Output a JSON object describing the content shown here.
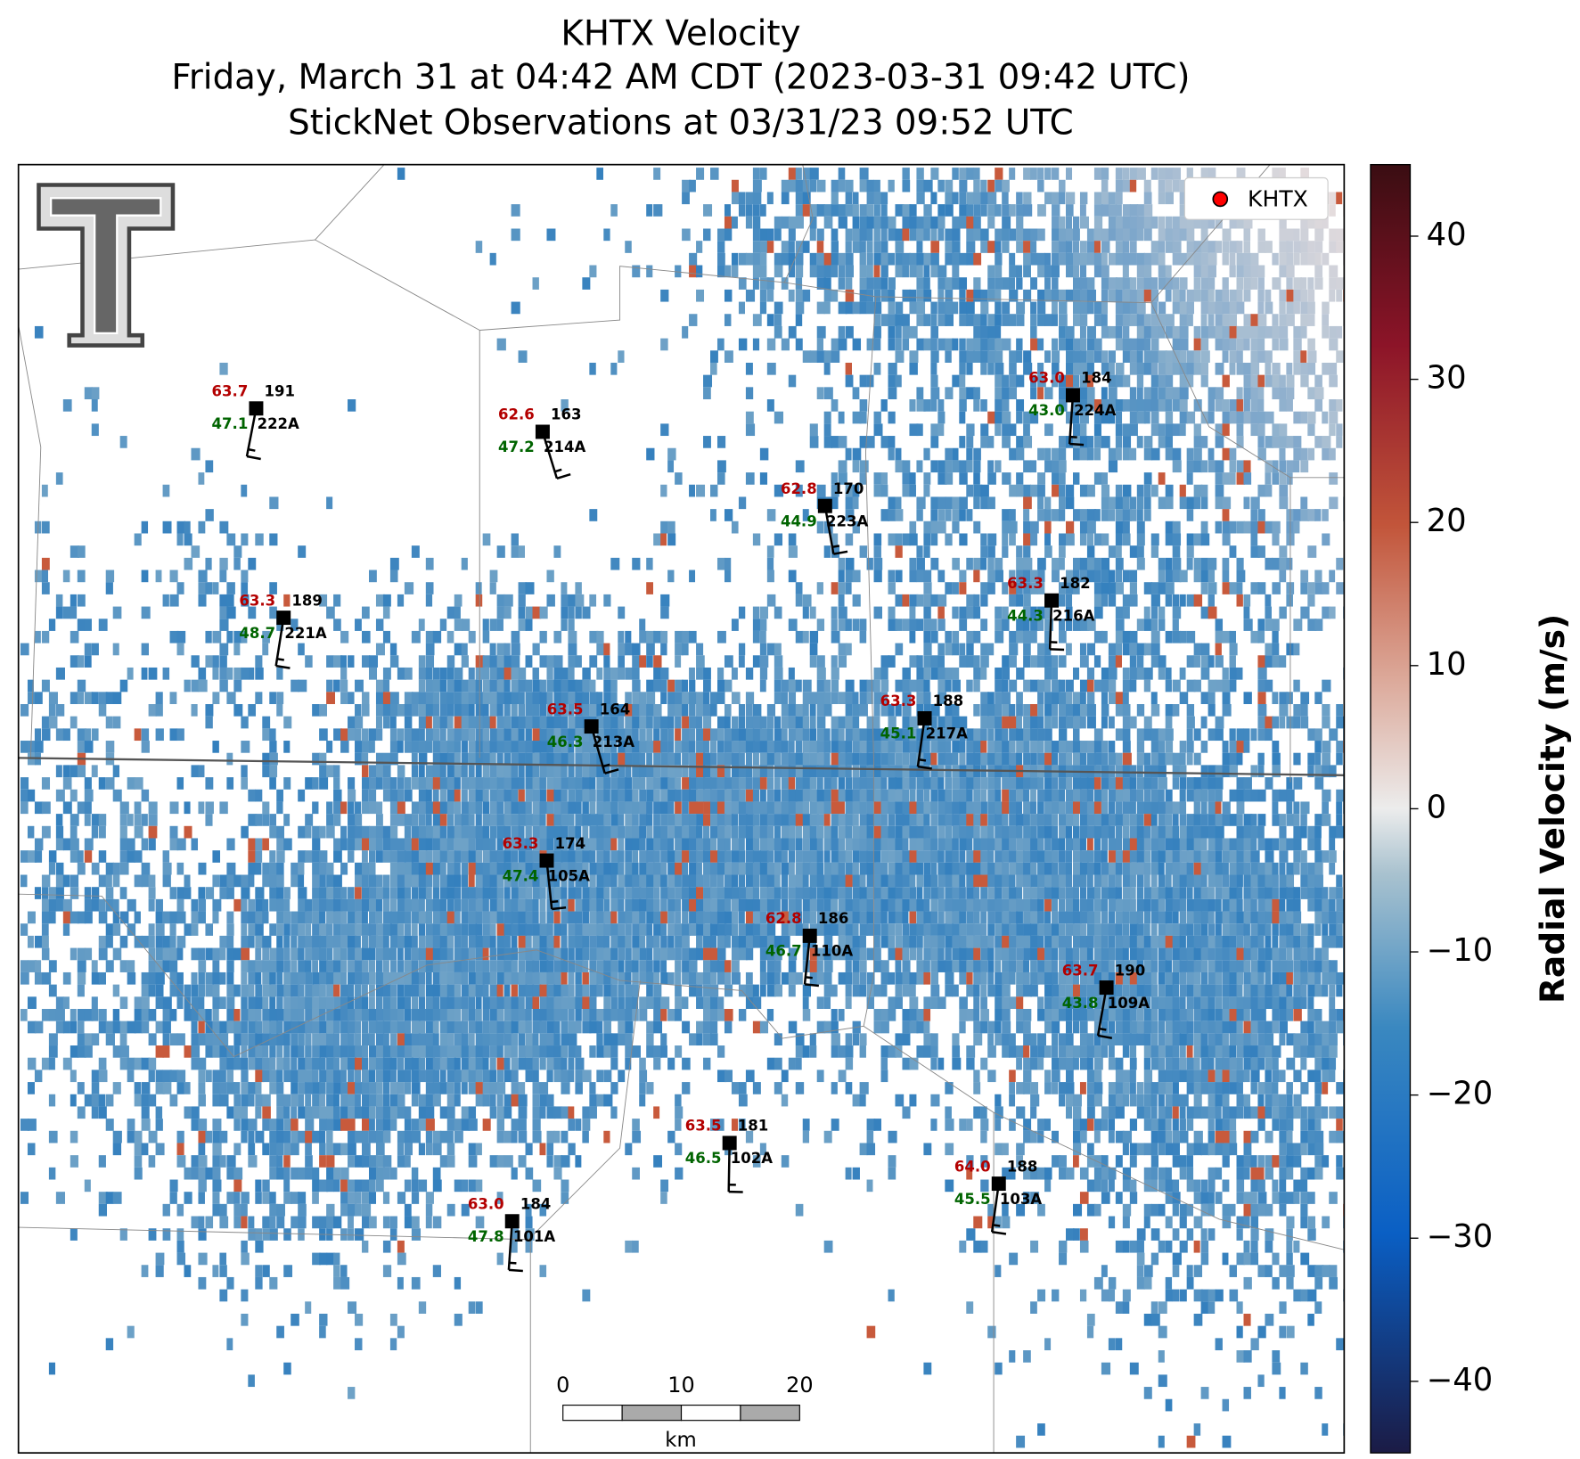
{
  "header": {
    "title": "KHTX Velocity",
    "subtitle": "Friday, March 31 at 04:42 AM CDT (2023-03-31 09:42 UTC)",
    "subtitle2": "StickNet Observations at 03/31/23 09:52 UTC"
  },
  "legend": {
    "label": "KHTX",
    "color": "#ff0000"
  },
  "colorbar": {
    "label": "Radial Velocity (m/s)",
    "lim": [
      -45,
      45
    ],
    "ticks": [
      {
        "value": -40,
        "label": "−40"
      },
      {
        "value": -30,
        "label": "−30"
      },
      {
        "value": -20,
        "label": "−20"
      },
      {
        "value": -10,
        "label": "−10"
      },
      0,
      10,
      20,
      30,
      40
    ]
  },
  "scale_bar": {
    "ticks": [
      0,
      10,
      20
    ],
    "unit": "km"
  },
  "stations": [
    {
      "id": "222A",
      "temp": "63.7",
      "dir": 191,
      "dew": "47.1"
    },
    {
      "id": "214A",
      "temp": "62.6",
      "dir": 163,
      "dew": "47.2"
    },
    {
      "id": "223A",
      "temp": "62.8",
      "dir": 170,
      "dew": "44.9"
    },
    {
      "id": "224A",
      "temp": "63.0",
      "dir": 184,
      "dew": "43.0"
    },
    {
      "id": "221A",
      "temp": "63.3",
      "dir": 189,
      "dew": "48.7"
    },
    {
      "id": "216A",
      "temp": "63.3",
      "dir": 182,
      "dew": "44.3"
    },
    {
      "id": "213A",
      "temp": "63.5",
      "dir": 164,
      "dew": "46.3"
    },
    {
      "id": "217A",
      "temp": "63.3",
      "dir": 188,
      "dew": "45.1"
    },
    {
      "id": "105A",
      "temp": "63.3",
      "dir": 174,
      "dew": "47.4"
    },
    {
      "id": "110A",
      "temp": "62.8",
      "dir": 186,
      "dew": "46.7"
    },
    {
      "id": "109A",
      "temp": "63.7",
      "dir": 190,
      "dew": "43.8"
    },
    {
      "id": "102A",
      "temp": "63.5",
      "dir": 181,
      "dew": "46.5"
    },
    {
      "id": "103A",
      "temp": "64.0",
      "dir": 188,
      "dew": "45.5"
    },
    {
      "id": "101A",
      "temp": "63.0",
      "dir": 184,
      "dew": "47.8"
    }
  ]
}
